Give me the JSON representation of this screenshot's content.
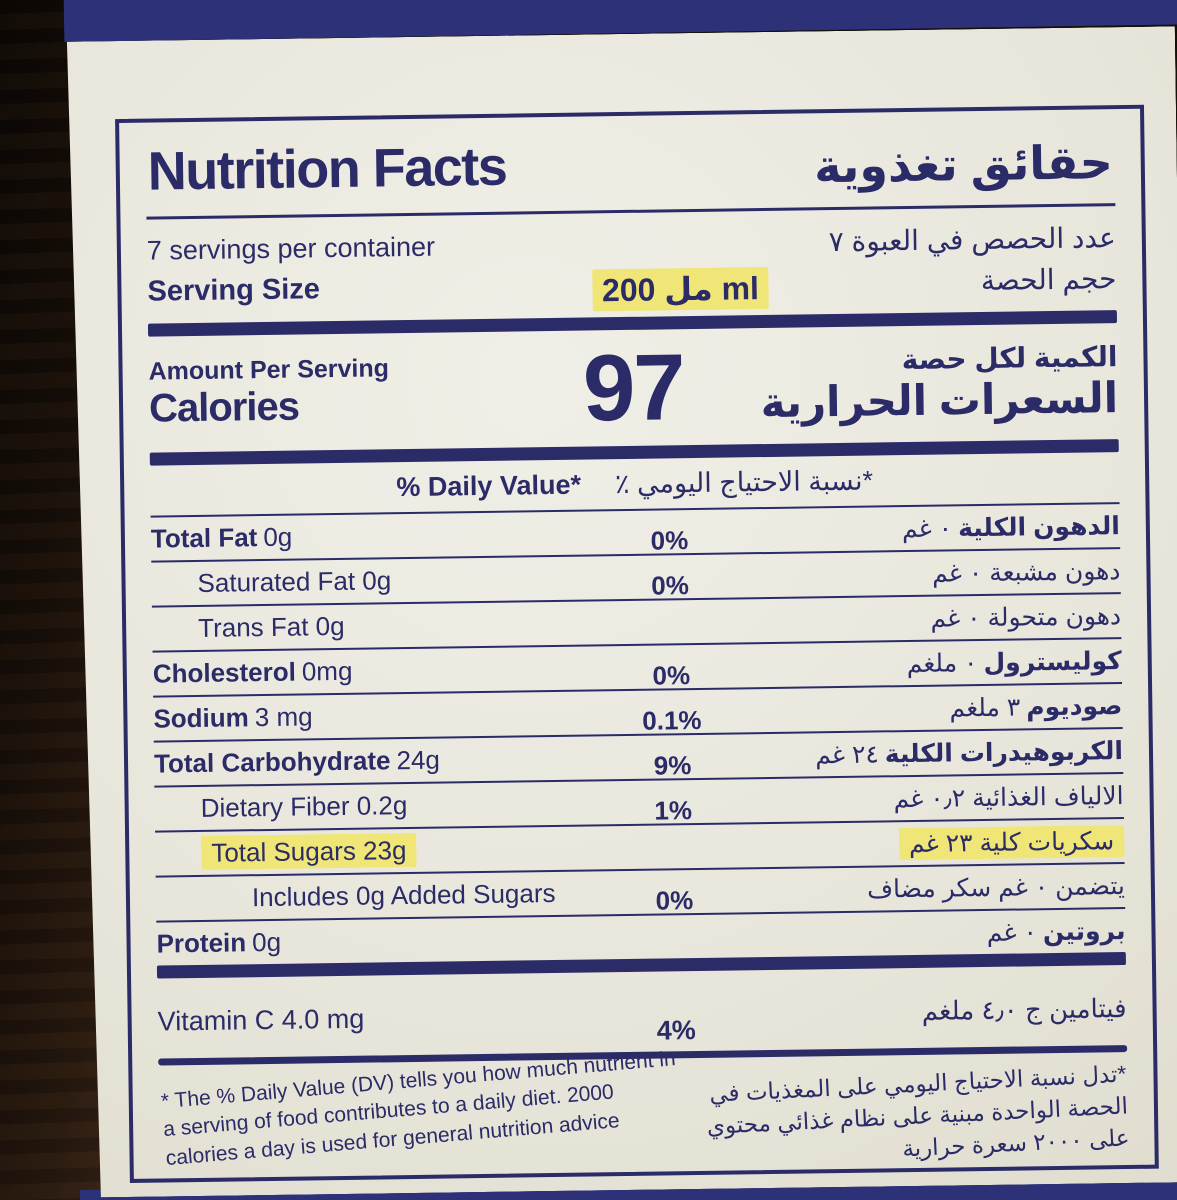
{
  "colors": {
    "navy": "#2b2b68",
    "navy-deep": "#2c3178",
    "cream": "#e9e7dc",
    "hl": "#f0e677"
  },
  "label": {
    "title_en": "Nutrition Facts",
    "title_ar": "حقائق تغذوية",
    "servings_en": "7 servings per container",
    "serving_size_en": "Serving Size",
    "serving_size_value": "مل 200 ml",
    "servings_ar": "عدد الحصص في العبوة ٧",
    "serving_size_ar": "حجم الحصة",
    "amount_per_serving_en": "Amount Per Serving",
    "calories_en": "Calories",
    "calories_value": "97",
    "amount_per_serving_ar": "الكمية لكل حصة",
    "calories_ar": "السعرات الحرارية",
    "daily_value_en": "% Daily Value*",
    "daily_value_ar": "*نسبة الاحتياج اليومي ٪",
    "rows": [
      {
        "en_bold": "Total Fat",
        "en_rest": "0g",
        "pct": "0%",
        "ar_bold": "الدهون الكلية",
        "ar_rest": "٠ غم",
        "indent": 0,
        "highlight": false
      },
      {
        "en_bold": "",
        "en_rest": "Saturated Fat 0g",
        "pct": "0%",
        "ar_bold": "",
        "ar_rest": "دهون مشبعة ٠ غم",
        "indent": 1,
        "highlight": false
      },
      {
        "en_bold": "",
        "en_rest": "Trans Fat 0g",
        "pct": "",
        "ar_bold": "",
        "ar_rest": "دهون متحولة ٠ غم",
        "indent": 1,
        "highlight": false
      },
      {
        "en_bold": "Cholesterol",
        "en_rest": "0mg",
        "pct": "0%",
        "ar_bold": "كوليسترول",
        "ar_rest": "٠ ملغم",
        "indent": 0,
        "highlight": false
      },
      {
        "en_bold": "Sodium",
        "en_rest": "3 mg",
        "pct": "0.1%",
        "ar_bold": "صوديوم",
        "ar_rest": "٣ ملغم",
        "indent": 0,
        "highlight": false
      },
      {
        "en_bold": "Total Carbohydrate",
        "en_rest": "24g",
        "pct": "9%",
        "ar_bold": "الكربوهيدرات الكلية",
        "ar_rest": "٢٤ غم",
        "indent": 0,
        "highlight": false
      },
      {
        "en_bold": "",
        "en_rest": "Dietary Fiber 0.2g",
        "pct": "1%",
        "ar_bold": "",
        "ar_rest": "الالياف الغذائية ٠٫٢ غم",
        "indent": 1,
        "highlight": false
      },
      {
        "en_bold": "",
        "en_rest": "Total Sugars 23g",
        "pct": "",
        "ar_bold": "",
        "ar_rest": "سكريات كلية ٢٣ غم",
        "indent": 1,
        "highlight": true
      },
      {
        "en_bold": "",
        "en_rest": "Includes 0g Added Sugars",
        "pct": "0%",
        "ar_bold": "",
        "ar_rest": "يتضمن ٠ غم سكر مضاف",
        "indent": 2,
        "highlight": false
      },
      {
        "en_bold": "Protein",
        "en_rest": "0g",
        "pct": "",
        "ar_bold": "بروتين",
        "ar_rest": "٠ غم",
        "indent": 0,
        "highlight": false
      }
    ],
    "vitamin": {
      "en": "Vitamin C  4.0 mg",
      "pct": "4%",
      "ar": "فيتامين ج  ٤٫٠ ملغم"
    },
    "footnote_en": "* The % Daily Value (DV) tells you how much nutrient in a serving of food contributes to a daily diet. 2000 calories a day is used for general nutrition advice",
    "footnote_ar": "*تدل نسبة الاحتياج اليومي على المغذيات في الحصة الواحدة مبنية على نظام غذائي محتوي على ٢٠٠٠ سعرة حرارية"
  }
}
